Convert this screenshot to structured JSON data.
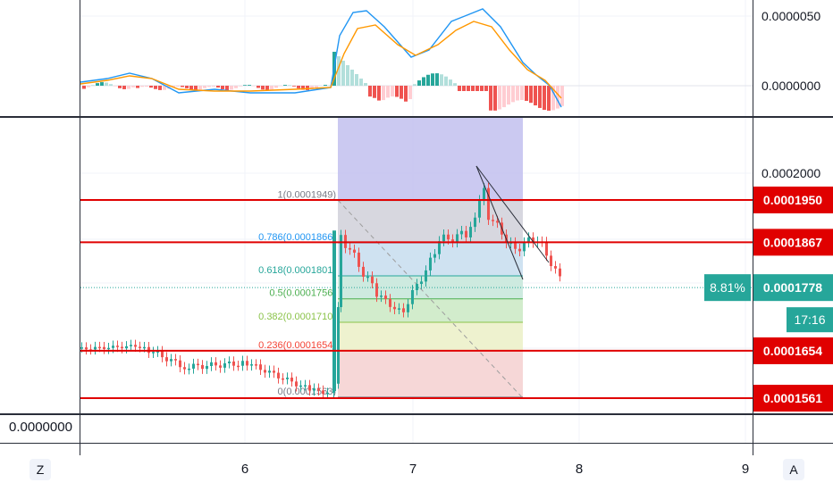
{
  "macd_axis": {
    "top": "0.0000050",
    "zero": "0.0000000"
  },
  "price_axis": {
    "tick": "0.0002000"
  },
  "levels": [
    {
      "label": "0.0001950",
      "value": 0.000195,
      "color": "#e00000"
    },
    {
      "label": "0.0001867",
      "value": 0.0001867,
      "color": "#e00000"
    },
    {
      "label": "0.0001654",
      "value": 0.0001654,
      "color": "#e00000"
    },
    {
      "label": "0.0001561",
      "value": 0.0001561,
      "color": "#e00000"
    }
  ],
  "current_price": {
    "label": "0.0001778",
    "change": "8.81%",
    "countdown": "17:16",
    "color": "#26a69a"
  },
  "fib_levels": [
    {
      "ratio": "1",
      "label": "1(0.0001949)",
      "value": 0.0001949,
      "color": "#787b86"
    },
    {
      "ratio": "0.786",
      "label": "0.786(0.0001866)",
      "value": 0.0001866,
      "color": "#2196f3"
    },
    {
      "ratio": "0.618",
      "label": "0.618(0.0001801)",
      "value": 0.0001801,
      "color": "#26a69a"
    },
    {
      "ratio": "0.5",
      "label": "0.5(0.0001756)",
      "value": 0.0001756,
      "color": "#4caf50"
    },
    {
      "ratio": "0.382",
      "label": "0.382(0.0001710)",
      "value": 0.000171,
      "color": "#8bc34a"
    },
    {
      "ratio": "0.236",
      "label": "0.236(0.0001654)",
      "value": 0.0001654,
      "color": "#f44336"
    },
    {
      "ratio": "0",
      "label": "0(0.0001563)",
      "value": 0.0001563,
      "color": "#787b86"
    }
  ],
  "x_axis": {
    "ticks": [
      "6",
      "7",
      "8",
      "9"
    ]
  },
  "bottom_pane": {
    "value": "0.0000000"
  },
  "buttons": {
    "left": "Z",
    "right": "A"
  },
  "colors": {
    "up": "#26a69a",
    "down": "#ef5350",
    "macd": "#2196f3",
    "signal": "#ff9800",
    "level": "#e00000",
    "hist_pos_strong": "#26a69a",
    "hist_pos_weak": "#b2dfdb",
    "hist_neg_strong": "#ef5350",
    "hist_neg_weak": "#ffcdd2"
  }
}
